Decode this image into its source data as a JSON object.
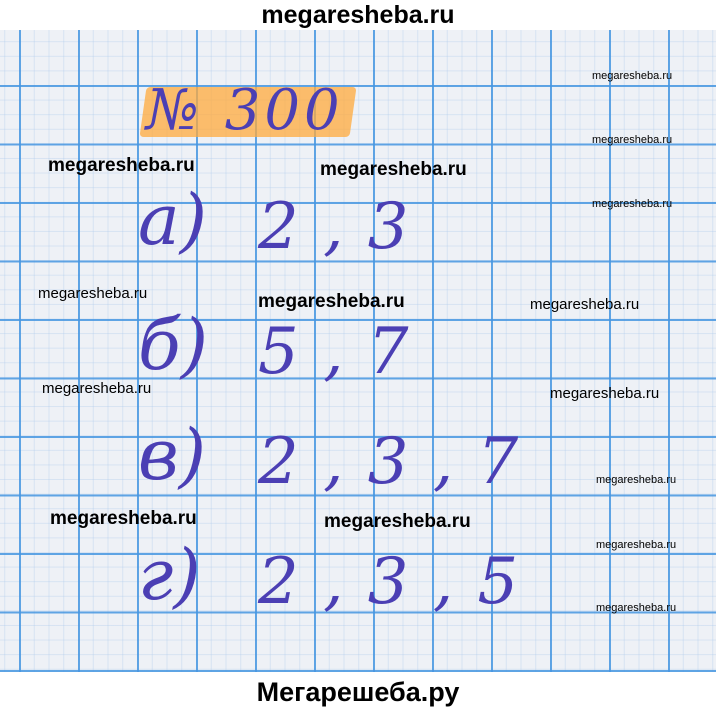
{
  "site_header": "megaresheba.ru",
  "site_footer": "Мегарешеба.ру",
  "colors": {
    "ink": "#4b3fb4",
    "grid": "#4696e1",
    "highlight": "#ffaa3c",
    "paper": "#eef1f6"
  },
  "exercise": {
    "number": "№ 300",
    "answers": [
      {
        "label": "а)",
        "values": "2 , 3"
      },
      {
        "label": "б)",
        "values": "5 , 7"
      },
      {
        "label": "в)",
        "values": "2 , 3 , 7"
      },
      {
        "label": "г)",
        "values": "2 , 3 , 5"
      }
    ]
  },
  "watermark": "megaresheba.ru"
}
